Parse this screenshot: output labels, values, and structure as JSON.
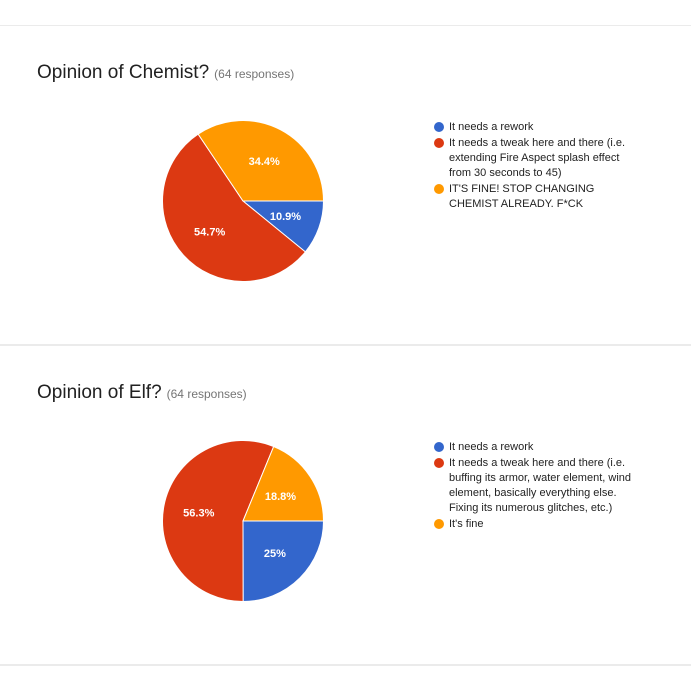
{
  "colors": {
    "blue": "#3366cc",
    "red": "#dc3912",
    "orange": "#ff9900"
  },
  "chart_data": [
    {
      "type": "pie",
      "title": "Opinion of Chemist?",
      "responses_label": "(64 responses)",
      "categories": [
        "It needs a rework",
        "It needs a tweak here and there (i.e. extending Fire Aspect splash effect from 30 seconds to 45)",
        "IT'S FINE! STOP CHANGING CHEMIST ALREADY. F*CK"
      ],
      "values": [
        10.9,
        54.7,
        34.4
      ],
      "labels": [
        "10.9%",
        "54.7%",
        "34.4%"
      ],
      "colors": [
        "#3366cc",
        "#dc3912",
        "#ff9900"
      ],
      "legend_position": "right"
    },
    {
      "type": "pie",
      "title": "Opinion of Elf?",
      "responses_label": "(64 responses)",
      "categories": [
        "It needs a rework",
        "It needs a tweak here and there (i.e. buffing its armor, water element, wind element, basically everything else. Fixing its numerous glitches, etc.)",
        "It's fine"
      ],
      "values": [
        25,
        56.3,
        18.8
      ],
      "labels": [
        "25%",
        "56.3%",
        "18.8%"
      ],
      "colors": [
        "#3366cc",
        "#dc3912",
        "#ff9900"
      ],
      "legend_position": "right"
    }
  ]
}
